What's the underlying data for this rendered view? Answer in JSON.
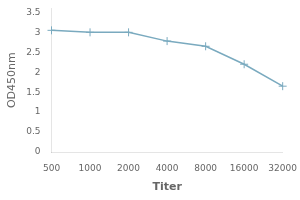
{
  "chart_data": {
    "type": "line",
    "x_label": "Titer",
    "y_label": "OD450nm",
    "categories": [
      "500",
      "1000",
      "2000",
      "4000",
      "8000",
      "16000",
      "32000"
    ],
    "values": [
      3.05,
      3.0,
      3.0,
      2.78,
      2.65,
      2.2,
      1.65
    ],
    "color": "#7aaabf",
    "marker": "plus",
    "ylim": [
      0,
      3.6
    ],
    "yticks": [
      0,
      0.5,
      1,
      1.5,
      2,
      2.5,
      3,
      3.5
    ],
    "grid": false
  }
}
